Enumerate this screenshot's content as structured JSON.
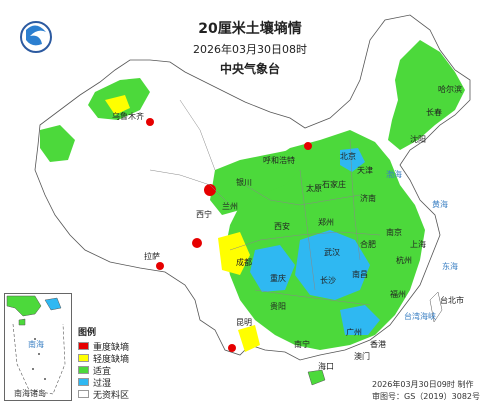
{
  "header": {
    "title": "20厘米土壤墒情",
    "datetime": "2026年03月30日08时",
    "agency": "中央气象台"
  },
  "legend": {
    "title": "图例",
    "items": [
      {
        "label": "重度缺墒",
        "color": "#e60000"
      },
      {
        "label": "轻度缺墒",
        "color": "#ffff00"
      },
      {
        "label": "适宜",
        "color": "#4cd93b"
      },
      {
        "label": "过湿",
        "color": "#2fb8f2"
      },
      {
        "label": "无资料区",
        "color": "#ffffff"
      }
    ]
  },
  "inset": {
    "label": "南海诸岛",
    "sea_label": "南海"
  },
  "footer": {
    "made": "2026年03月30日09时 制作",
    "review_no": "审图号：GS（2019）3082号"
  },
  "places": {
    "harbin": "哈尔滨",
    "changchun": "长春",
    "shenyang": "沈阳",
    "beijing": "北京",
    "tianjin": "天津",
    "shijiazhuang": "石家庄",
    "jinan": "济南",
    "taiyuan": "太原",
    "hohhot": "呼和浩特",
    "yinchuan": "银川",
    "lanzhou": "兰州",
    "xining": "西宁",
    "xian": "西安",
    "zhengzhou": "郑州",
    "hefei": "合肥",
    "nanjing": "南京",
    "shanghai": "上海",
    "hangzhou": "杭州",
    "wuhan": "武汉",
    "changsha": "长沙",
    "nanchang": "南昌",
    "fuzhou": "福州",
    "taipei": "台北市",
    "chengdu": "成都",
    "chongqing": "重庆",
    "guiyang": "贵阳",
    "kunming": "昆明",
    "nanning": "南宁",
    "guangzhou": "广州",
    "hongkong": "香港",
    "macau": "澳门",
    "haikou": "海口",
    "lhasa": "拉萨",
    "urumqi": "乌鲁木齐",
    "yellow_sea": "黄海",
    "east_sea": "东海",
    "bohai": "渤海",
    "taiwan_strait": "台湾海峡"
  },
  "colors": {
    "water": "#ffffff",
    "border": "#555555",
    "severe": "#e60000",
    "light": "#ffff00",
    "suitable": "#4cd93b",
    "wet": "#2fb8f2",
    "nodata": "#ffffff"
  }
}
